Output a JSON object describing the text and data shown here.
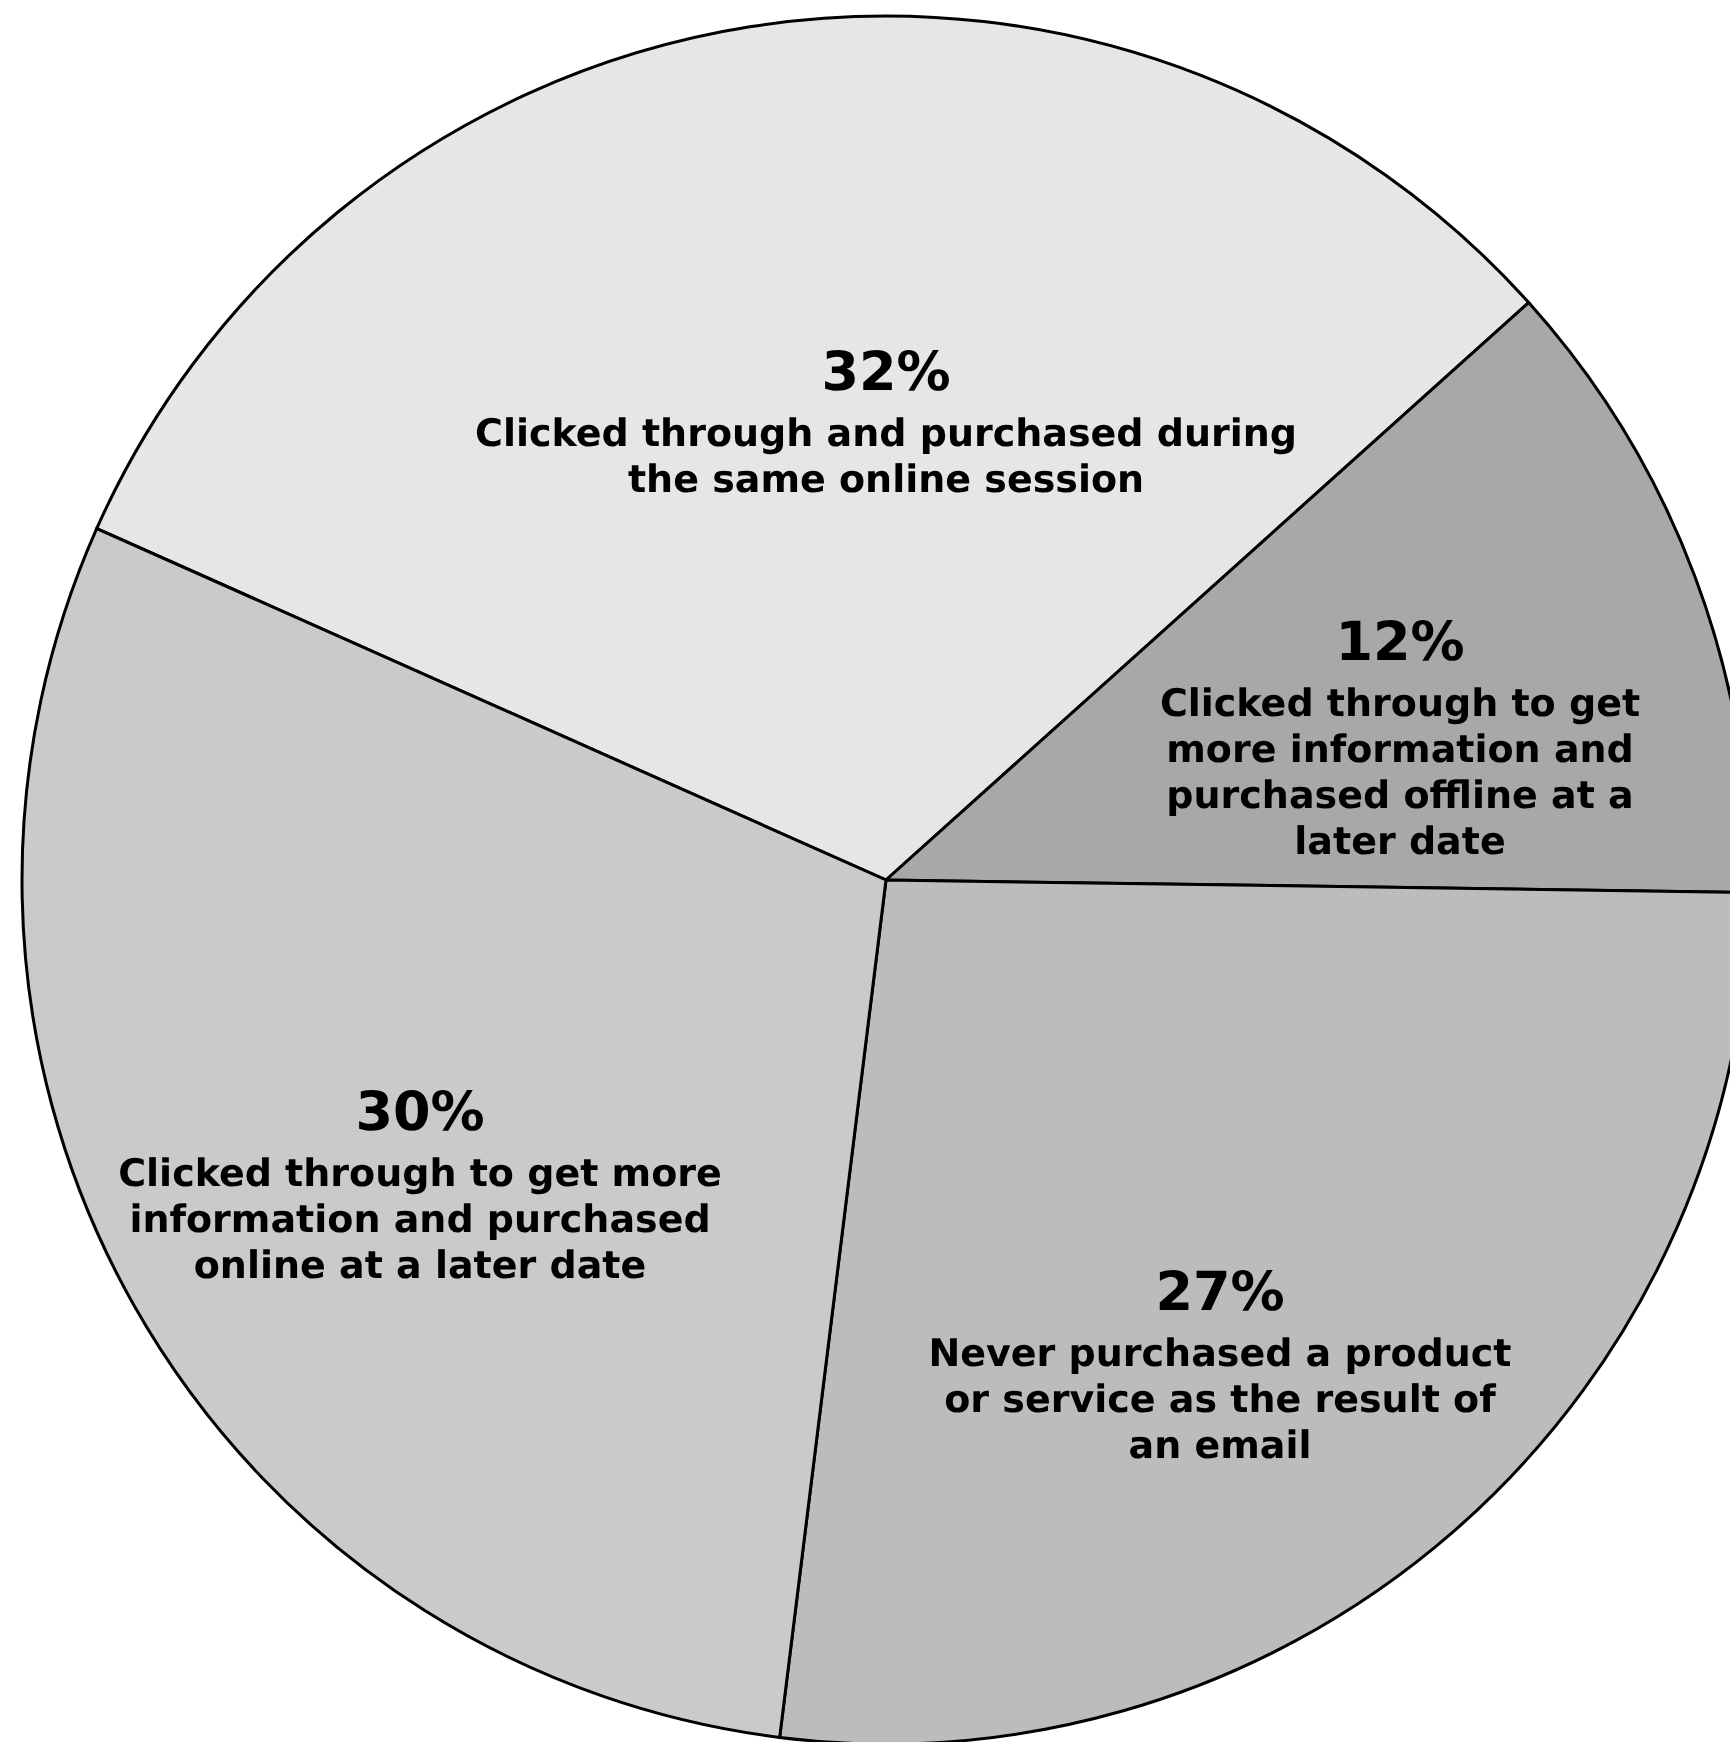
{
  "chart_data": {
    "type": "pie",
    "categories": [
      "Clicked through and purchased during the same online session",
      "Clicked through to get more information and purchased offline at a later date",
      "Never purchased a product or service as the result of an email",
      "Clicked through to get more information and purchased online at a later date"
    ],
    "values": [
      32,
      12,
      27,
      30
    ],
    "value_labels": [
      "32%",
      "12%",
      "27%",
      "30%"
    ],
    "colors": [
      "#e6e6e6",
      "#a8a8a8",
      "#bcbcbc",
      "#cacaca"
    ]
  }
}
